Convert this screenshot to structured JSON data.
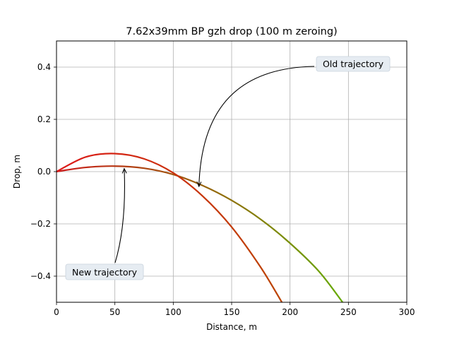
{
  "chart_data": {
    "type": "line",
    "title": "7.62x39mm BP gzh drop (100 m zeroing)",
    "xlabel": "Distance, m",
    "ylabel": "Drop, m",
    "xlim": [
      0,
      300
    ],
    "ylim": [
      -0.5,
      0.5
    ],
    "xticks": [
      0,
      50,
      100,
      150,
      200,
      250,
      300
    ],
    "yticks": [
      -0.4,
      -0.2,
      0.0,
      0.2,
      0.4
    ],
    "xtick_labels": [
      "0",
      "50",
      "100",
      "150",
      "200",
      "250",
      "300"
    ],
    "ytick_labels": [
      "−0.4",
      "−0.2",
      "0.0",
      "0.2",
      "0.4"
    ],
    "grid": true,
    "series": [
      {
        "color_start": "#cc1a1a",
        "color_end": "#66aa00",
        "x": [
          0,
          25,
          50,
          75,
          100,
          125,
          150,
          175,
          200,
          225,
          245
        ],
        "values": [
          0.0,
          0.016,
          0.021,
          0.013,
          -0.011,
          -0.053,
          -0.11,
          -0.183,
          -0.274,
          -0.383,
          -0.5
        ]
      },
      {
        "color_start": "#dd1a1a",
        "color_end": "#bb4400",
        "x": [
          0,
          25,
          50,
          75,
          100,
          125,
          150,
          175,
          193
        ],
        "values": [
          0.0,
          0.056,
          0.069,
          0.049,
          -0.005,
          -0.093,
          -0.212,
          -0.367,
          -0.5
        ]
      }
    ],
    "annotations": [
      {
        "text": "Old trajectory",
        "point": [
          122,
          -0.065
        ]
      },
      {
        "text": "New trajectory",
        "point": [
          58,
          0.02
        ]
      }
    ]
  }
}
